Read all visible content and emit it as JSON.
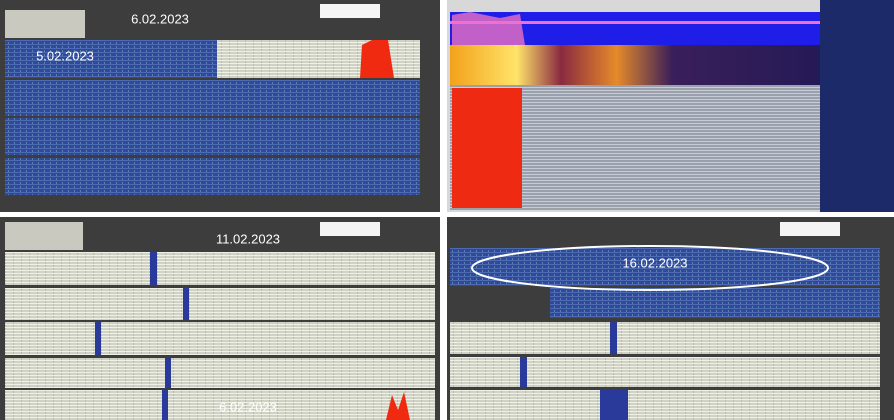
{
  "top_left": {
    "labels": [
      "6.02.2023",
      "5.02.2023"
    ]
  },
  "bottom_left": {
    "labels": [
      "11.02.2023",
      "6.02.2023"
    ]
  },
  "bottom_right": {
    "labels": [
      "16.02.2023"
    ]
  }
}
